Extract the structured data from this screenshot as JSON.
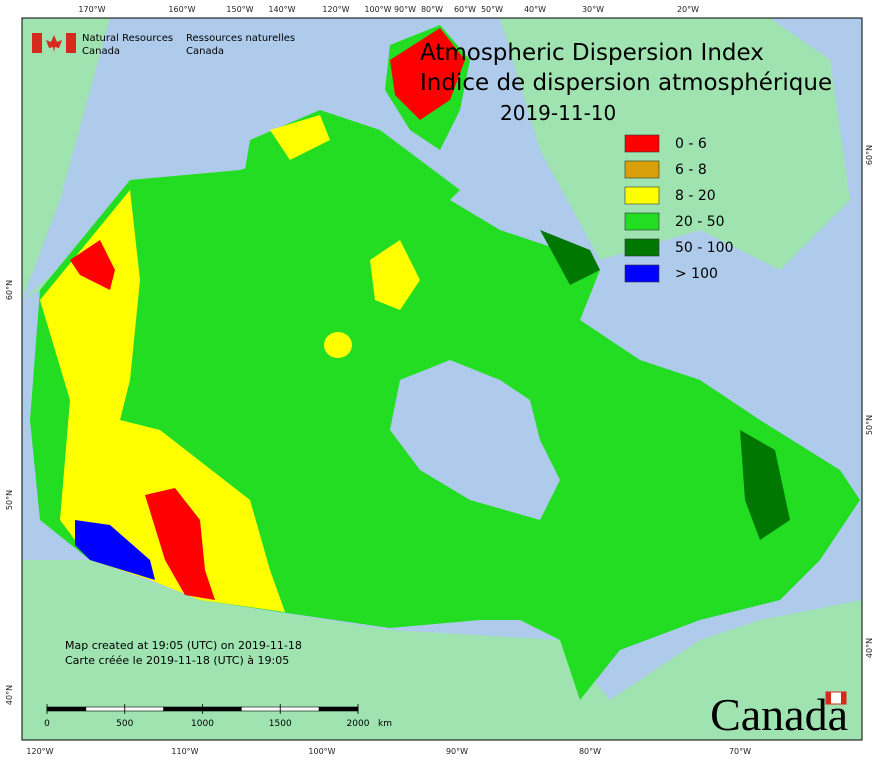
{
  "header": {
    "org_en": "Natural Resources",
    "country_en": "Canada",
    "org_fr": "Ressources naturelles",
    "country_fr": "Canada"
  },
  "title": {
    "en": "Atmospheric Dispersion Index",
    "fr": "Indice de dispersion atmosphérique",
    "date": "2019-11-10"
  },
  "legend": [
    {
      "label": "0 - 6",
      "color": "#ff0000"
    },
    {
      "label": "6 - 8",
      "color": "#d9a00a"
    },
    {
      "label": "8 - 20",
      "color": "#ffff00"
    },
    {
      "label": "20 - 50",
      "color": "#22dd22"
    },
    {
      "label": "50 - 100",
      "color": "#007700"
    },
    {
      "label": "> 100",
      "color": "#0000ff"
    }
  ],
  "top_labels": [
    "170°W",
    "160°W",
    "150°W",
    "140°W",
    "120°W",
    "100°W",
    "90°W",
    "80°W",
    "60°W",
    "50°W",
    "40°W",
    "30°W",
    "20°W"
  ],
  "bottom_labels": [
    "120°W",
    "110°W",
    "100°W",
    "90°W",
    "80°W",
    "70°W"
  ],
  "left_labels": [
    "60°N",
    "50°N",
    "40°N"
  ],
  "right_labels": [
    "60°N",
    "50°N",
    "40°N"
  ],
  "scale": {
    "ticks": [
      0,
      500,
      1000,
      1500,
      2000
    ],
    "unit": "km"
  },
  "credits": [
    "Map created at 19:05 (UTC) on 2019-11-18",
    "Carte créée le 2019-11-18 (UTC) à 19:05"
  ],
  "wordmark": "Canada"
}
